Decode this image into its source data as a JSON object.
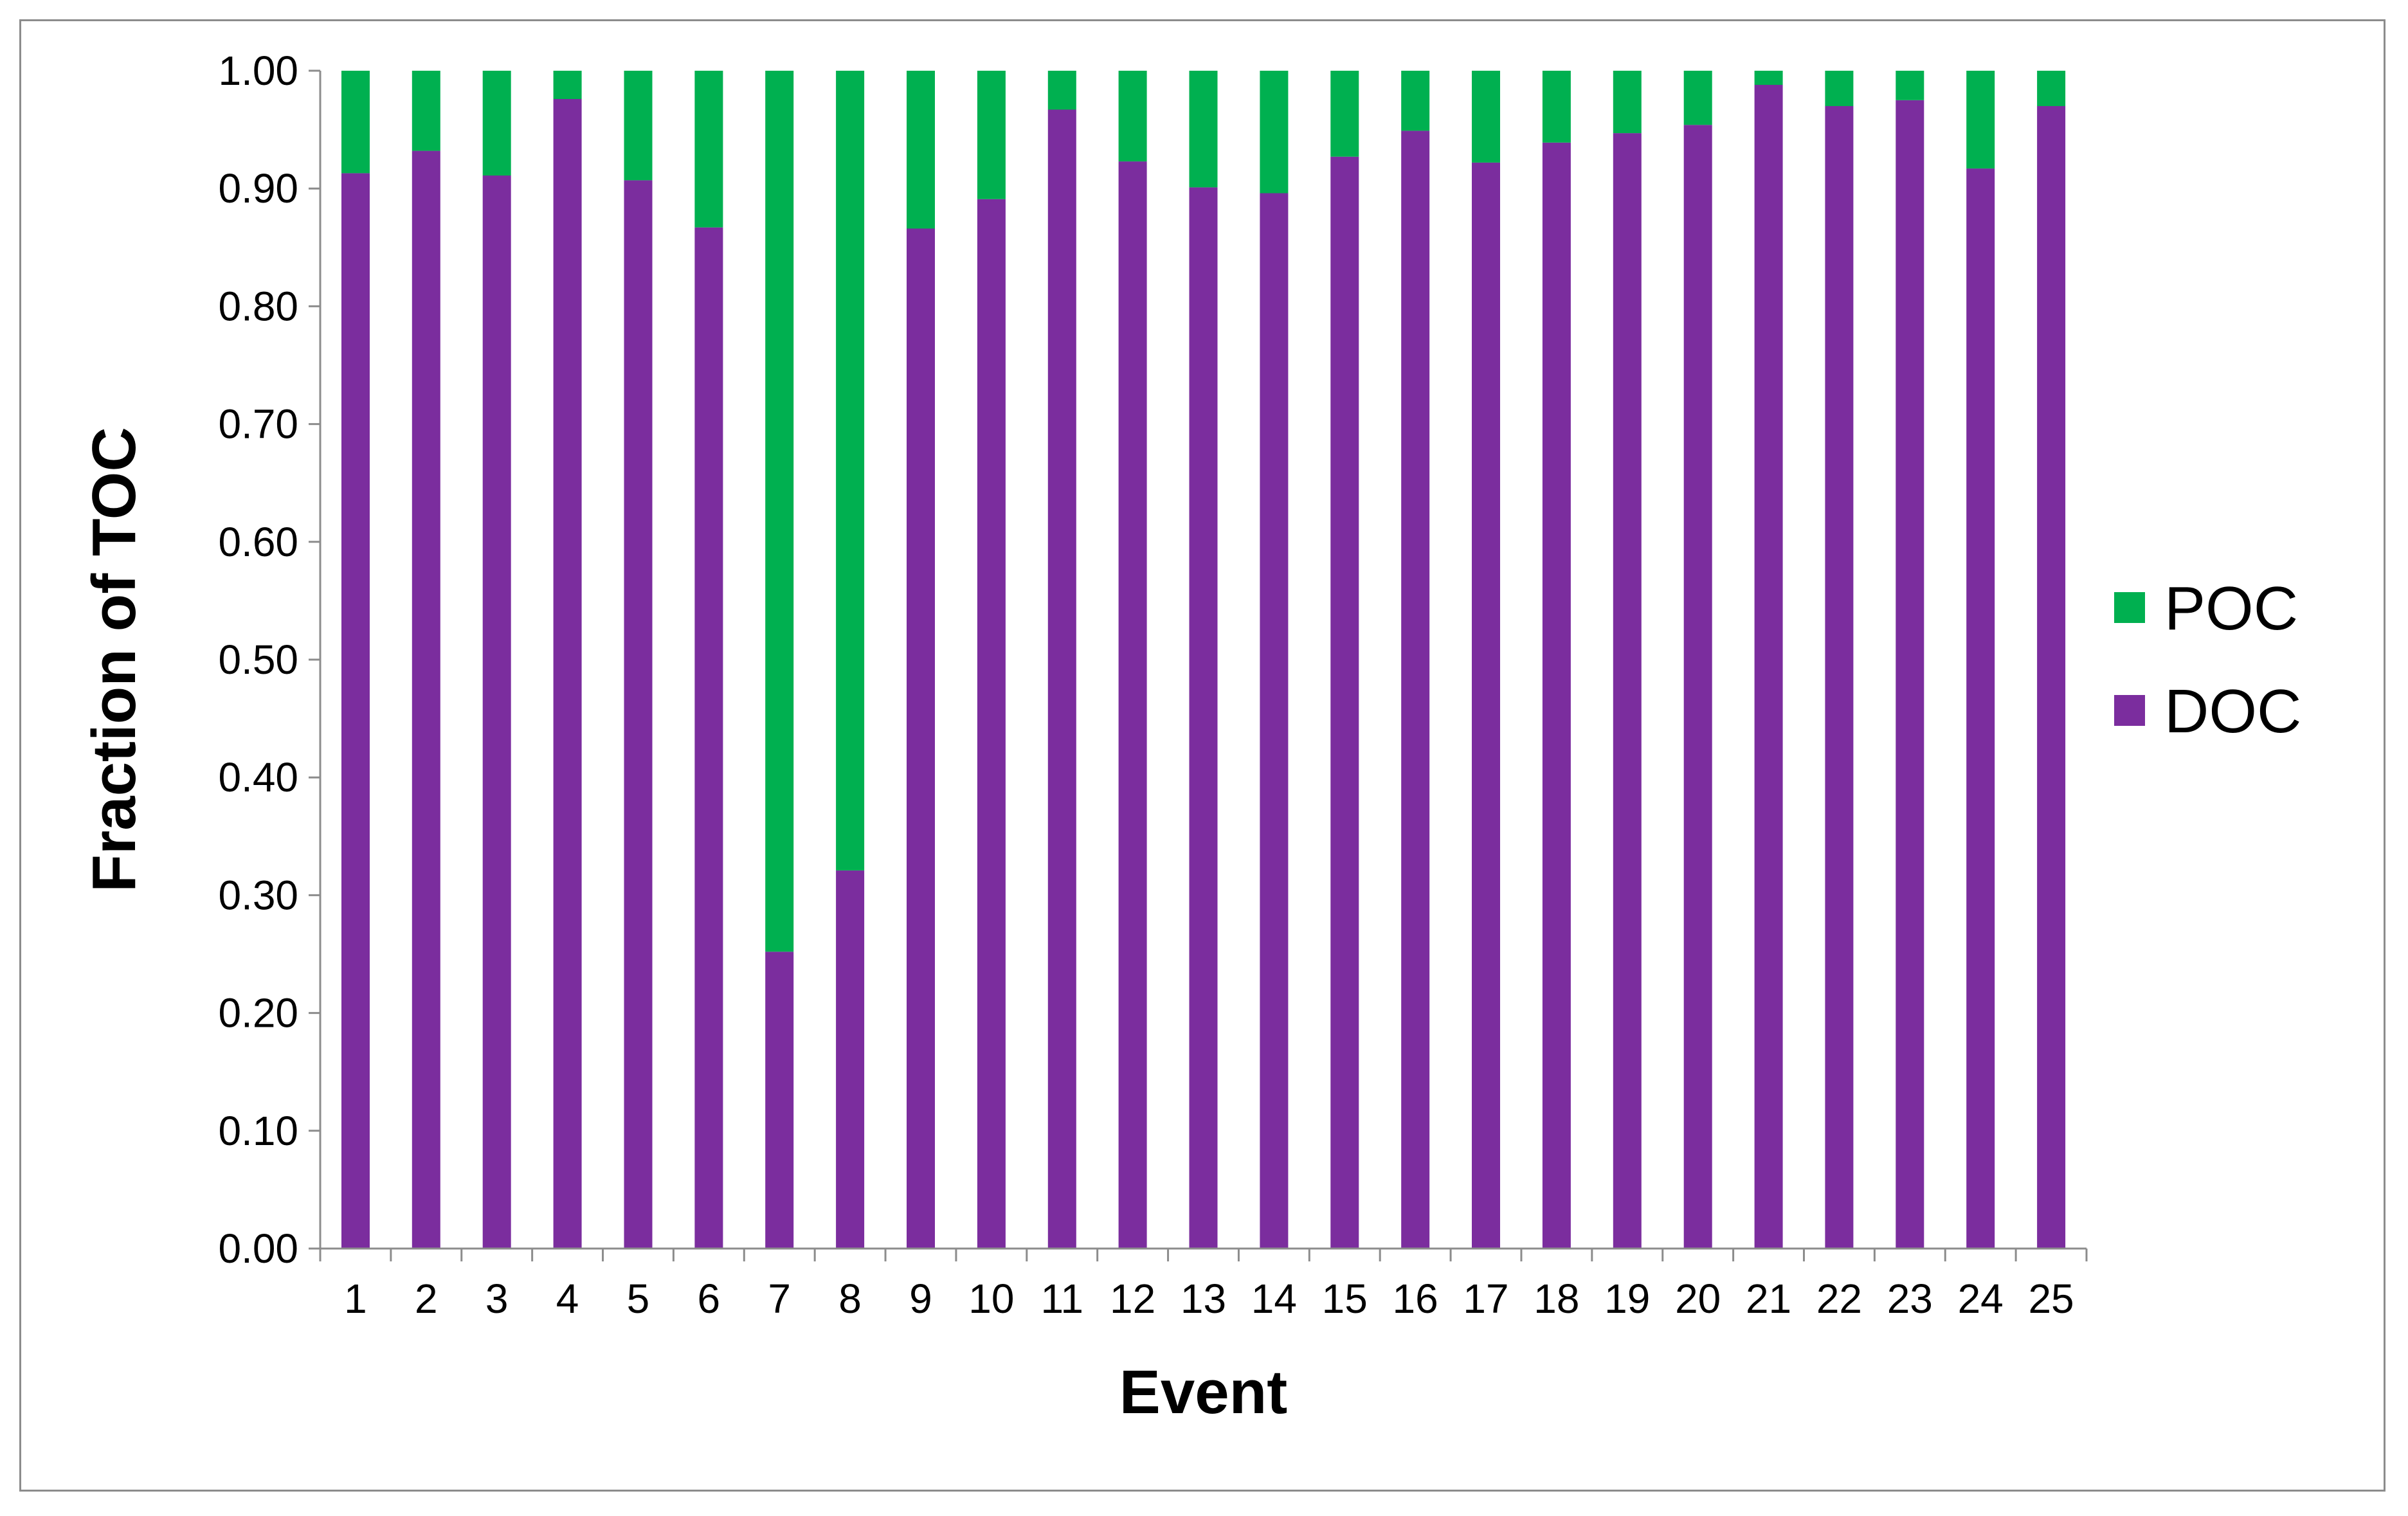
{
  "chart_data": {
    "type": "bar",
    "stacked": true,
    "categories": [
      "1",
      "2",
      "3",
      "4",
      "5",
      "6",
      "7",
      "8",
      "9",
      "10",
      "11",
      "12",
      "13",
      "14",
      "15",
      "16",
      "17",
      "18",
      "19",
      "20",
      "21",
      "22",
      "23",
      "24",
      "25"
    ],
    "series": [
      {
        "name": "DOC",
        "color": "#7B2D9E",
        "values": [
          0.913,
          0.932,
          0.911,
          0.976,
          0.907,
          0.867,
          0.252,
          0.321,
          0.866,
          0.891,
          0.967,
          0.923,
          0.901,
          0.896,
          0.927,
          0.949,
          0.922,
          0.939,
          0.947,
          0.954,
          0.988,
          0.97,
          0.975,
          0.917,
          0.97
        ]
      },
      {
        "name": "POC",
        "color": "#00B050",
        "values": [
          0.087,
          0.068,
          0.089,
          0.024,
          0.093,
          0.133,
          0.748,
          0.679,
          0.134,
          0.109,
          0.033,
          0.077,
          0.099,
          0.104,
          0.073,
          0.051,
          0.078,
          0.061,
          0.053,
          0.046,
          0.012,
          0.03,
          0.025,
          0.083,
          0.03
        ]
      }
    ],
    "legend_order": [
      "POC",
      "DOC"
    ],
    "xlabel": "Event",
    "ylabel": "Fraction of TOC",
    "ylim": [
      0,
      1
    ],
    "yticks": [
      "0.00",
      "0.10",
      "0.20",
      "0.30",
      "0.40",
      "0.50",
      "0.60",
      "0.70",
      "0.80",
      "0.90",
      "1.00"
    ],
    "grid": false,
    "legend_position": "right"
  }
}
